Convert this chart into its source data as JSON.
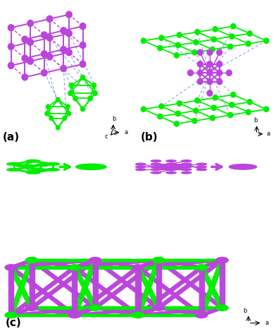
{
  "panel_a_label": "(a)",
  "panel_b_label": "(b)",
  "panel_c_label": "(c)",
  "green": "#00EE00",
  "purple": "#BB44DD",
  "blue_dash": "#7799DD",
  "bg": "#FFFFFF",
  "fig_width": 3.92,
  "fig_height": 4.69,
  "dpi": 100,
  "lbl_fs": 11,
  "lbl_fw": "bold",
  "axis_fs": 6
}
